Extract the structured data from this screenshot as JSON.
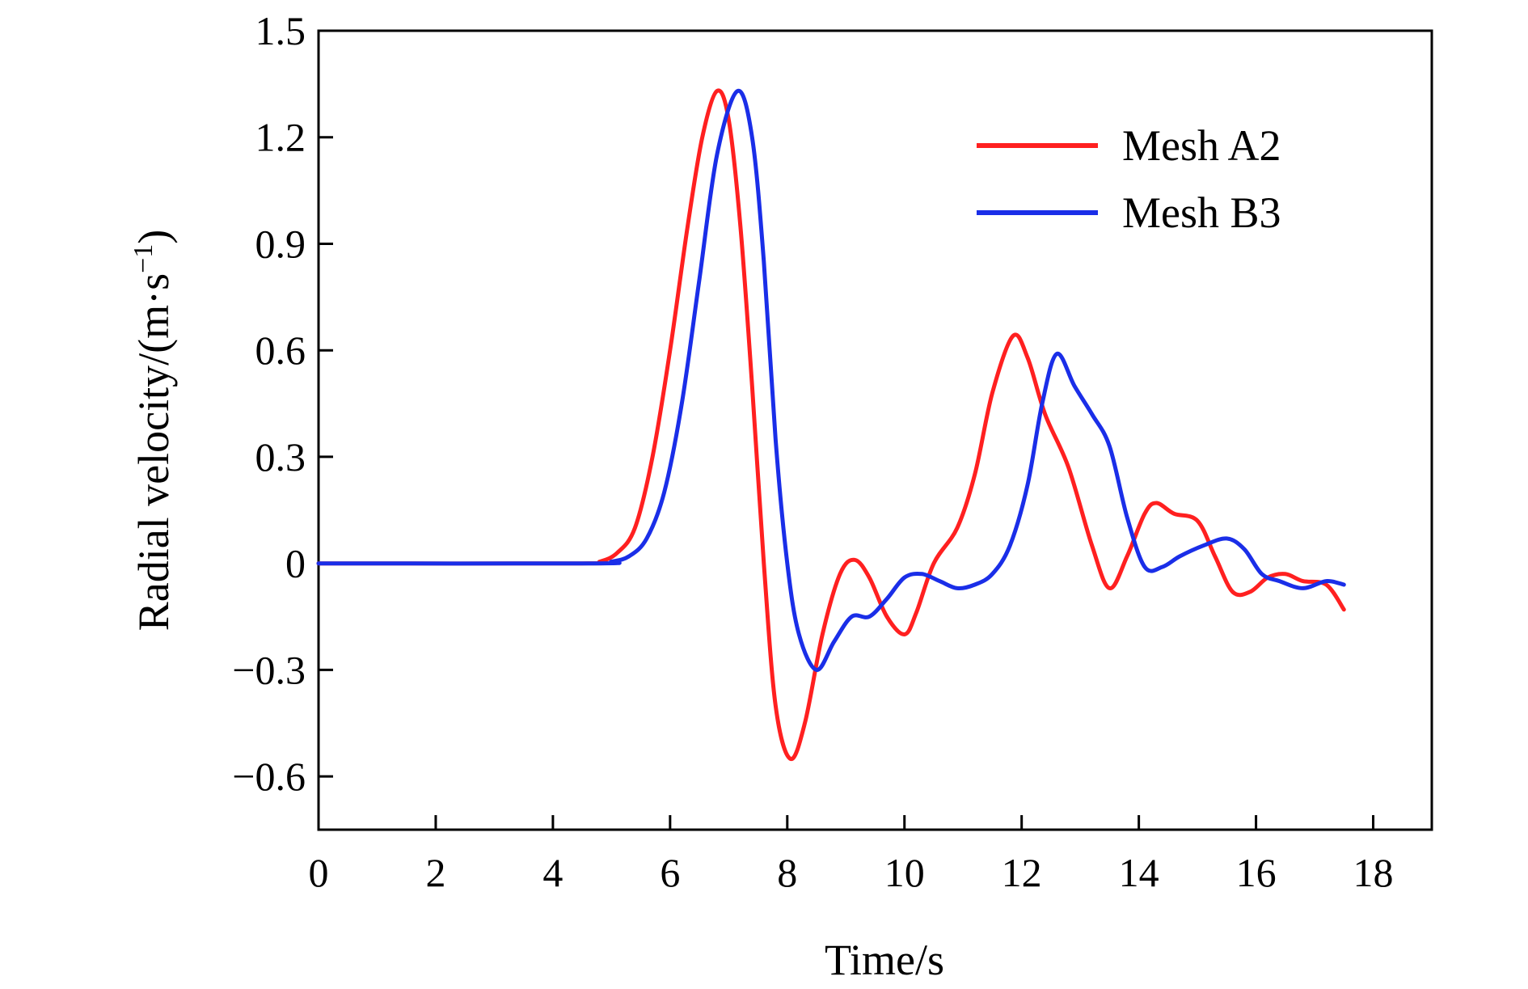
{
  "chart_data": {
    "type": "line",
    "xlabel": "Time/s",
    "ylabel": "Radial velocity/(m·s",
    "ylabel_sup": "−1",
    "ylabel_close": ")",
    "xlim": [
      0,
      19
    ],
    "ylim": [
      -0.75,
      1.5
    ],
    "xticks": [
      0,
      2,
      4,
      6,
      8,
      10,
      12,
      14,
      16,
      18
    ],
    "xtick_labels": [
      "0",
      "2",
      "4",
      "6",
      "8",
      "10",
      "12",
      "14",
      "16",
      "18"
    ],
    "yticks": [
      -0.6,
      -0.3,
      0,
      0.3,
      0.6,
      0.9,
      1.2,
      1.5
    ],
    "ytick_labels": [
      "−0.6",
      "−0.3",
      "0",
      "0.3",
      "0.6",
      "0.9",
      "1.2",
      "1.5"
    ],
    "grid": false,
    "legend_position": "top-right",
    "series": [
      {
        "name": "Mesh A2",
        "color": "#ff2020",
        "x": [
          0,
          4.5,
          4.8,
          5.1,
          5.4,
          5.7,
          6.0,
          6.3,
          6.55,
          6.8,
          7.0,
          7.2,
          7.4,
          7.6,
          7.8,
          8.05,
          8.3,
          8.6,
          8.9,
          9.15,
          9.4,
          9.7,
          10.0,
          10.2,
          10.5,
          10.9,
          11.2,
          11.5,
          11.85,
          12.1,
          12.4,
          12.8,
          13.2,
          13.5,
          13.8,
          14.1,
          14.3,
          14.6,
          15.0,
          15.3,
          15.6,
          15.9,
          16.2,
          16.5,
          16.8,
          17.2,
          17.5
        ],
        "y": [
          0,
          0,
          0.005,
          0.03,
          0.1,
          0.3,
          0.6,
          0.95,
          1.2,
          1.33,
          1.25,
          0.95,
          0.5,
          0.0,
          -0.4,
          -0.55,
          -0.45,
          -0.2,
          -0.03,
          0.01,
          -0.04,
          -0.15,
          -0.2,
          -0.14,
          0.0,
          0.1,
          0.25,
          0.48,
          0.64,
          0.58,
          0.42,
          0.27,
          0.05,
          -0.07,
          0.02,
          0.14,
          0.17,
          0.14,
          0.12,
          0.02,
          -0.08,
          -0.08,
          -0.04,
          -0.03,
          -0.05,
          -0.06,
          -0.13
        ]
      },
      {
        "name": "Mesh B3",
        "color": "#1a2ee8",
        "x": [
          0,
          4.7,
          5.0,
          5.3,
          5.6,
          5.9,
          6.2,
          6.5,
          6.8,
          7.15,
          7.4,
          7.6,
          7.8,
          8.0,
          8.2,
          8.5,
          8.8,
          9.1,
          9.4,
          9.7,
          10.0,
          10.3,
          10.6,
          10.9,
          11.2,
          11.5,
          11.8,
          12.1,
          12.35,
          12.6,
          12.9,
          13.2,
          13.5,
          13.8,
          14.1,
          14.4,
          14.7,
          15.1,
          15.5,
          15.8,
          16.1,
          16.4,
          16.8,
          17.2,
          17.5
        ],
        "y": [
          0,
          0,
          0.005,
          0.02,
          0.07,
          0.2,
          0.45,
          0.8,
          1.15,
          1.33,
          1.2,
          0.85,
          0.35,
          0.0,
          -0.2,
          -0.3,
          -0.22,
          -0.15,
          -0.15,
          -0.1,
          -0.04,
          -0.03,
          -0.05,
          -0.07,
          -0.06,
          -0.03,
          0.05,
          0.22,
          0.45,
          0.59,
          0.5,
          0.42,
          0.33,
          0.13,
          -0.01,
          -0.01,
          0.02,
          0.05,
          0.07,
          0.04,
          -0.03,
          -0.05,
          -0.07,
          -0.05,
          -0.06
        ]
      }
    ]
  }
}
